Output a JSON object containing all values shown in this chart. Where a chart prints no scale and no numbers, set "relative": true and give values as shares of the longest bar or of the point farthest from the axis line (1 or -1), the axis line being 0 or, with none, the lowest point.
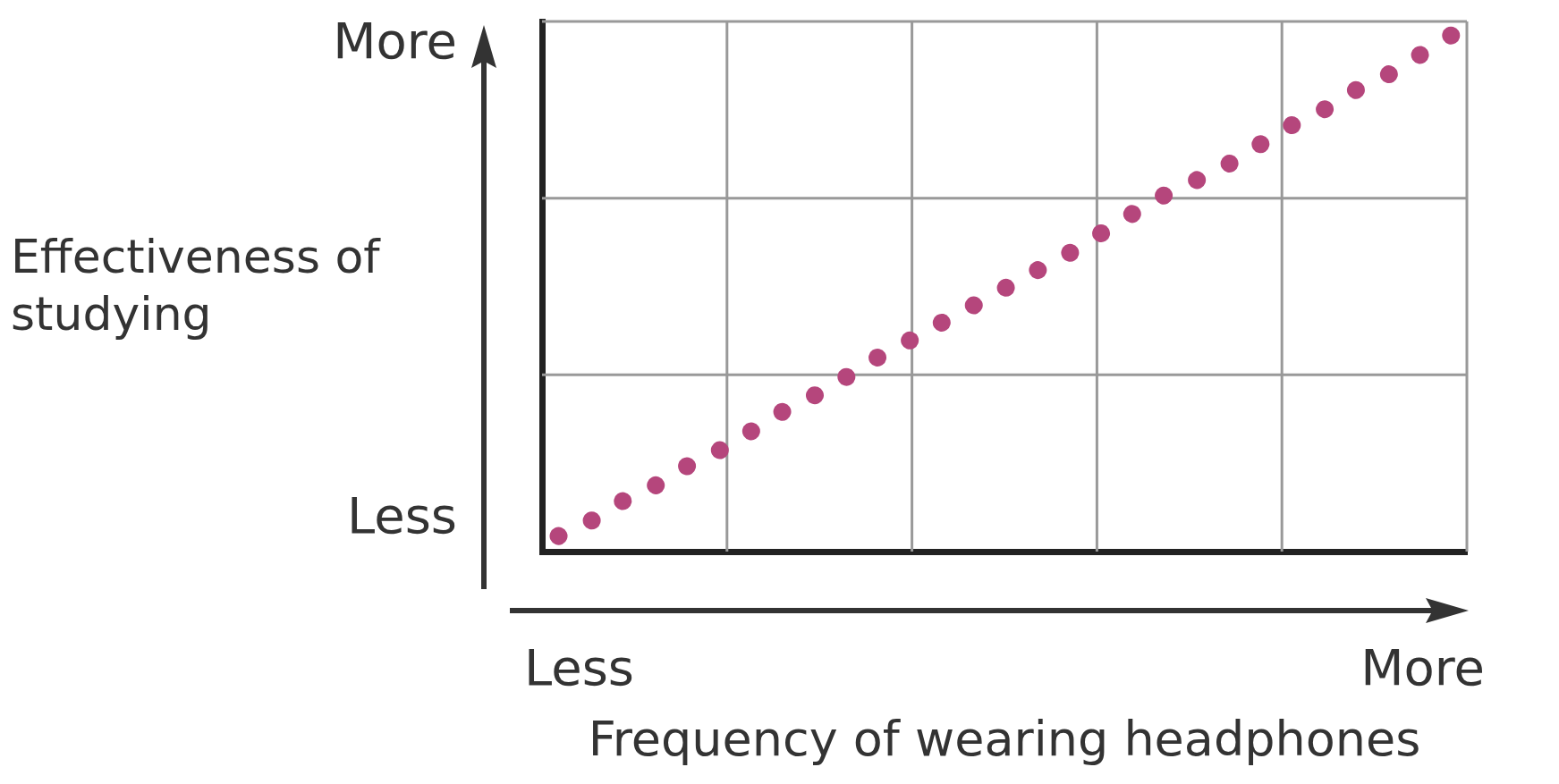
{
  "chart_data": {
    "type": "line",
    "xlabel": "Frequency of wearing headphones",
    "ylabel": "Effectiveness of studying",
    "annotations": [
      "More",
      "Less",
      "Less",
      "More"
    ],
    "relative": true,
    "grid": true,
    "line_style": "dotted",
    "categories": [
      null,
      null,
      null,
      null,
      null,
      null,
      null,
      null,
      null,
      null,
      null,
      null,
      null,
      null,
      null,
      null,
      null,
      null,
      null,
      null,
      null,
      null,
      null,
      null,
      null,
      null,
      null,
      null
    ],
    "series": [
      {
        "color": "#b5467c",
        "values": [
          0.03,
          0.06,
          0.1,
          0.13,
          0.17,
          0.2,
          0.24,
          0.28,
          0.31,
          0.35,
          0.39,
          0.42,
          0.46,
          0.49,
          0.53,
          0.56,
          0.6,
          0.64,
          0.68,
          0.71,
          0.74,
          0.78,
          0.82,
          0.85,
          0.89,
          0.92,
          0.96,
          1
        ]
      }
    ]
  }
}
